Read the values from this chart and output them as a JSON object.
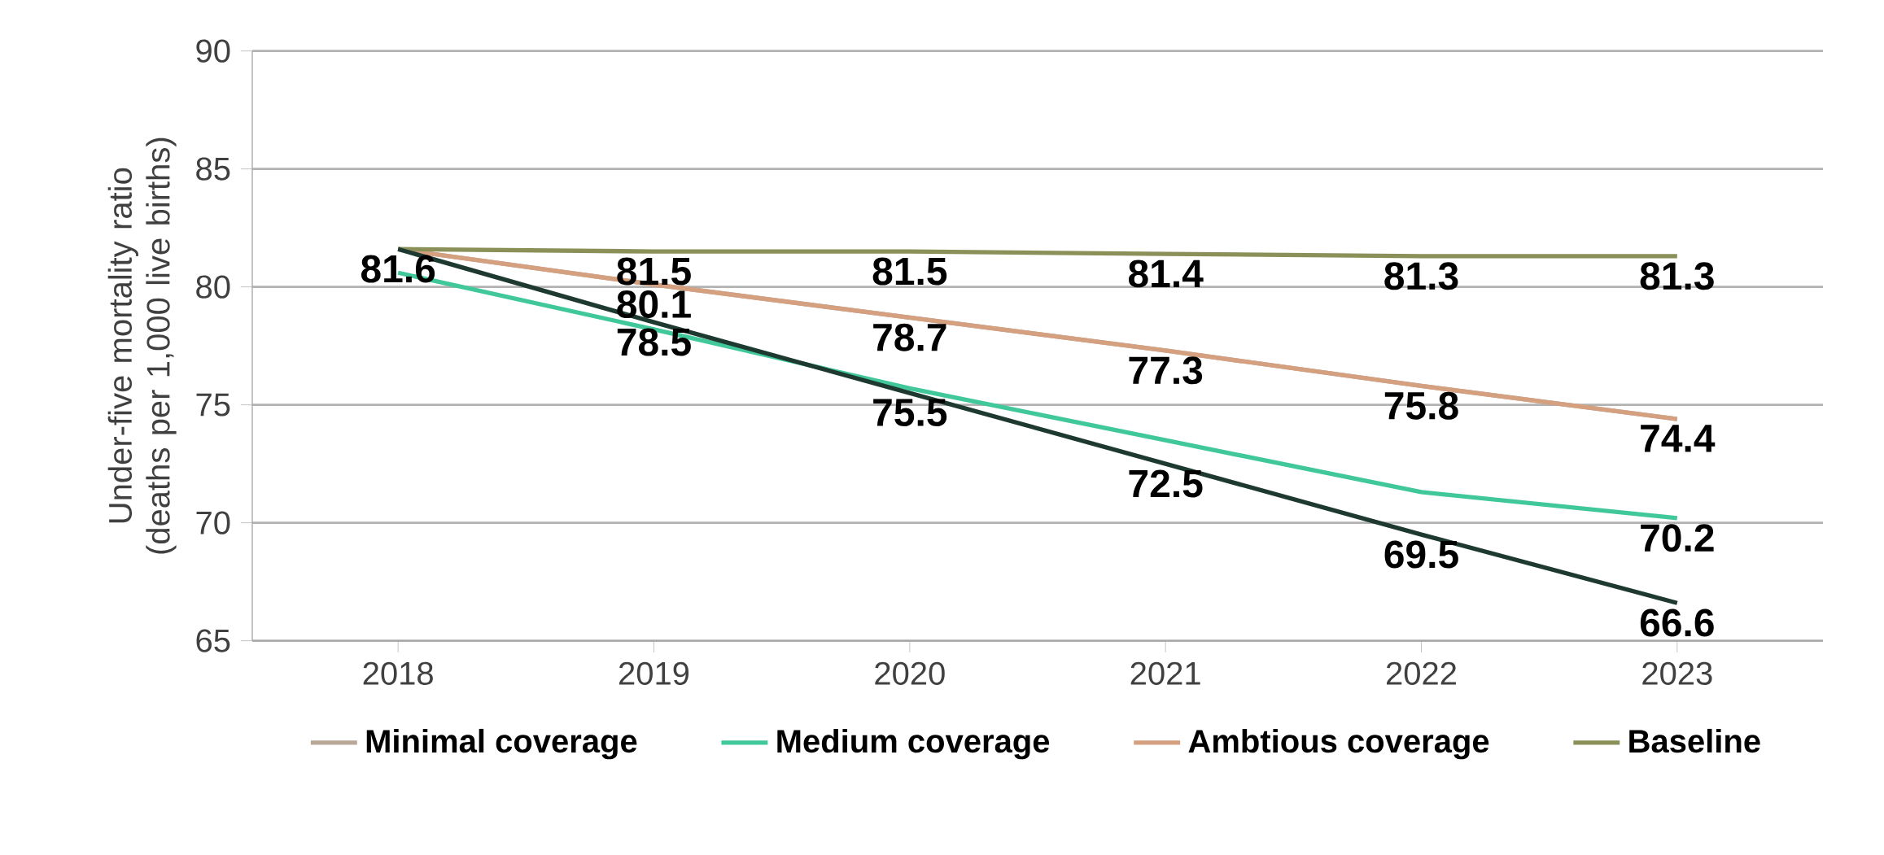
{
  "chart_data": {
    "type": "line",
    "ylabel": "Under-five mortality ratio (deaths per 1,000 live births)",
    "categories": [
      "2018",
      "2019",
      "2020",
      "2021",
      "2022",
      "2023"
    ],
    "ylim": [
      65,
      90
    ],
    "yticks": [
      65,
      70,
      75,
      80,
      85,
      90
    ],
    "grid": "y",
    "legend": "bottom",
    "series": [
      {
        "name": "Minimal coverage",
        "color": "#b8a898",
        "values": [
          81.6,
          80.1,
          78.7,
          77.3,
          75.8,
          74.4
        ]
      },
      {
        "name": "Medium coverage",
        "color": "#40c89a",
        "values": [
          80.6,
          78.2,
          75.7,
          73.5,
          71.3,
          70.2
        ],
        "value_labels": [
          null,
          null,
          null,
          null,
          null,
          "70.2"
        ]
      },
      {
        "name": "Ambtious coverage",
        "color": "#d4a080",
        "values": [
          81.6,
          80.1,
          78.7,
          77.3,
          75.8,
          74.4
        ],
        "value_labels": [
          null,
          "80.1",
          "78.7",
          "77.3",
          "75.8",
          "74.4"
        ]
      },
      {
        "name": "Baseline",
        "color": "#8a9058",
        "values": [
          81.6,
          81.5,
          81.5,
          81.4,
          81.3,
          81.3
        ],
        "value_labels": [
          "81.6",
          "81.5",
          "81.5",
          "81.4",
          "81.3",
          "81.3"
        ]
      },
      {
        "color": "#1e3a30",
        "values": [
          81.6,
          78.5,
          75.5,
          72.5,
          69.5,
          66.6
        ],
        "value_labels": [
          null,
          "78.5",
          "75.5",
          "72.5",
          "69.5",
          "66.6"
        ]
      }
    ]
  }
}
